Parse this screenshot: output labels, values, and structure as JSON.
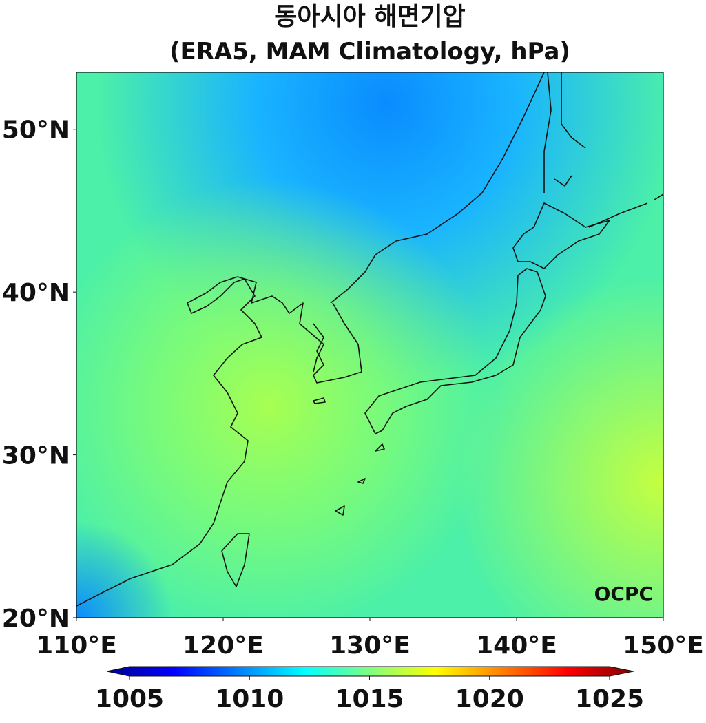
{
  "map": {
    "title": "동아시아 해면기압",
    "subtitle": "(ERA5, MAM Climatology, hPa)",
    "watermark": "OCPC",
    "xlim": [
      110,
      150
    ],
    "ylim": [
      20,
      53.5
    ],
    "xticks": [
      {
        "value": 110,
        "label": "110°E"
      },
      {
        "value": 120,
        "label": "120°E"
      },
      {
        "value": 130,
        "label": "130°E"
      },
      {
        "value": 140,
        "label": "140°E"
      },
      {
        "value": 150,
        "label": "150°E"
      }
    ],
    "yticks": [
      {
        "value": 20,
        "label": "20°N"
      },
      {
        "value": 30,
        "label": "30°N"
      },
      {
        "value": 40,
        "label": "40°N"
      },
      {
        "value": 50,
        "label": "50°N"
      }
    ],
    "colorbar": {
      "lim": [
        1005,
        1025
      ],
      "ticks": [
        1005,
        1010,
        1015,
        1020,
        1025
      ]
    }
  }
}
